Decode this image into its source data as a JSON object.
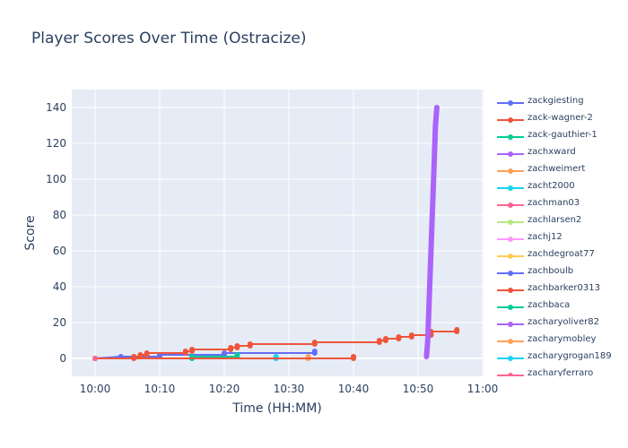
{
  "chart_data": {
    "type": "line",
    "title": "Player Scores Over Time (Ostracize)",
    "xlabel": "Time (HH:MM)",
    "ylabel": "Score",
    "x_ticks": [
      "10:00",
      "10:10",
      "10:20",
      "10:30",
      "10:40",
      "10:50",
      "11:00"
    ],
    "x_range": [
      "10:00",
      "11:00"
    ],
    "y_ticks": [
      0,
      20,
      40,
      60,
      80,
      100,
      120,
      140
    ],
    "ylim": [
      -10,
      150
    ],
    "grid": true,
    "legend_position": "right",
    "series": [
      {
        "name": "zackgiesting",
        "color": "#636efa",
        "points": [
          [
            "10:00",
            0
          ],
          [
            "10:04",
            1
          ],
          [
            "10:10",
            1
          ],
          [
            "10:10",
            2
          ],
          [
            "10:20",
            2
          ],
          [
            "10:20",
            3
          ],
          [
            "10:34",
            3
          ],
          [
            "10:34",
            4
          ]
        ]
      },
      {
        "name": "zack-wagner-2",
        "color": "#EF553B",
        "points": [
          [
            "10:00",
            0
          ],
          [
            "10:06",
            0
          ],
          [
            "10:06",
            1
          ],
          [
            "10:07",
            1
          ],
          [
            "10:07",
            2
          ],
          [
            "10:08",
            2
          ],
          [
            "10:08",
            3
          ],
          [
            "10:14",
            3
          ],
          [
            "10:14",
            4
          ],
          [
            "10:15",
            4
          ],
          [
            "10:15",
            5
          ],
          [
            "10:21",
            5
          ],
          [
            "10:21",
            6
          ],
          [
            "10:22",
            6
          ],
          [
            "10:22",
            7
          ],
          [
            "10:24",
            7
          ],
          [
            "10:24",
            8
          ],
          [
            "10:34",
            8
          ],
          [
            "10:34",
            9
          ],
          [
            "10:44",
            9
          ],
          [
            "10:44",
            10
          ],
          [
            "10:45",
            10
          ],
          [
            "10:45",
            11
          ],
          [
            "10:47",
            11
          ],
          [
            "10:47",
            12
          ],
          [
            "10:49",
            12
          ],
          [
            "10:49",
            13
          ],
          [
            "10:52",
            13
          ],
          [
            "10:52",
            14
          ],
          [
            "10:52",
            15
          ],
          [
            "10:56",
            15
          ],
          [
            "10:56",
            16
          ]
        ]
      },
      {
        "name": "zack-gauthier-1",
        "color": "#00cc96",
        "points": [
          [
            "10:00",
            0
          ],
          [
            "10:15",
            0
          ],
          [
            "10:15",
            1
          ],
          [
            "10:22",
            1
          ],
          [
            "10:22",
            2
          ]
        ]
      },
      {
        "name": "zachxward",
        "color": "#ab63fa",
        "points": [
          [
            "10:51.3",
            1
          ],
          [
            "10:51.5",
            10
          ],
          [
            "10:51.7",
            30
          ],
          [
            "10:52.0",
            60
          ],
          [
            "10:52.4",
            100
          ],
          [
            "10:52.7",
            130
          ],
          [
            "10:52.9",
            140
          ]
        ]
      },
      {
        "name": "zachweimert",
        "color": "#FFA15A",
        "points": [
          [
            "10:00",
            0
          ],
          [
            "10:33",
            0
          ],
          [
            "10:33",
            1
          ]
        ]
      },
      {
        "name": "zacht2000",
        "color": "#19d3f3",
        "points": [
          [
            "10:00",
            0
          ],
          [
            "10:28",
            0
          ],
          [
            "10:28",
            1
          ]
        ]
      },
      {
        "name": "zachman03",
        "color": "#FF6692",
        "points": [
          [
            "10:00",
            0
          ]
        ]
      },
      {
        "name": "zachlarsen2",
        "color": "#B6E880",
        "points": [
          [
            "10:00",
            0
          ]
        ]
      },
      {
        "name": "zachj12",
        "color": "#FF97FF",
        "points": [
          [
            "10:00",
            0
          ]
        ]
      },
      {
        "name": "zachdegroat77",
        "color": "#FECB52",
        "points": [
          [
            "10:00",
            0
          ]
        ]
      },
      {
        "name": "zachboulb",
        "color": "#636efa",
        "points": [
          [
            "10:00",
            0
          ]
        ]
      },
      {
        "name": "zachbarker0313",
        "color": "#EF553B",
        "points": [
          [
            "10:00",
            0
          ],
          [
            "10:40",
            0
          ],
          [
            "10:40",
            1
          ]
        ]
      },
      {
        "name": "zachbaca",
        "color": "#00cc96",
        "points": [
          [
            "10:00",
            0
          ]
        ]
      },
      {
        "name": "zacharyoliver82",
        "color": "#ab63fa",
        "points": [
          [
            "10:00",
            0
          ]
        ]
      },
      {
        "name": "zacharymobley",
        "color": "#FFA15A",
        "points": [
          [
            "10:00",
            0
          ]
        ]
      },
      {
        "name": "zacharygrogan189",
        "color": "#19d3f3",
        "points": [
          [
            "10:00",
            0
          ]
        ]
      },
      {
        "name": "zacharyferraro",
        "color": "#FF6692",
        "points": [
          [
            "10:00",
            0
          ]
        ]
      }
    ]
  }
}
